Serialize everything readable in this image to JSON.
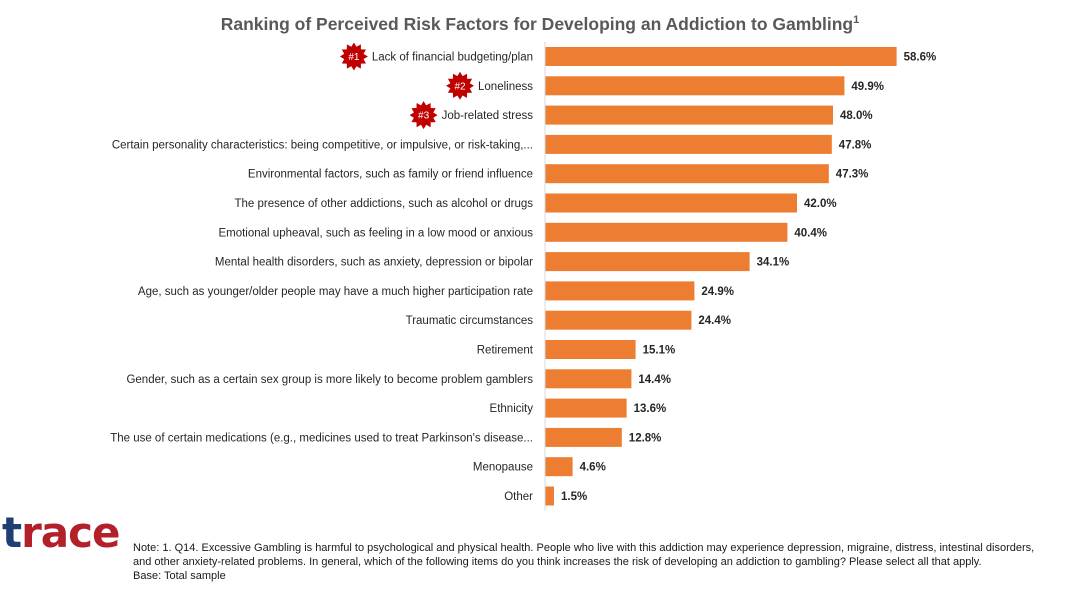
{
  "chart_data": {
    "type": "bar",
    "orientation": "horizontal",
    "title": "Ranking of Perceived Risk Factors for Developing an Addiction to Gambling",
    "title_superscript": "1",
    "categories": [
      "Lack of financial budgeting/plan",
      "Loneliness",
      "Job-related stress",
      "Certain personality characteristics: being competitive, or impulsive, or risk-taking,...",
      "Environmental factors, such as family or friend influence",
      "The presence of other addictions, such as alcohol or drugs",
      "Emotional upheaval, such as feeling in a low mood or anxious",
      "Mental health disorders, such as anxiety, depression or bipolar",
      "Age, such as younger/older people may have a much higher participation rate",
      "Traumatic circumstances",
      "Retirement",
      "Gender, such as a certain sex group is more likely to become problem gamblers",
      "Ethnicity",
      "The use of certain medications (e.g., medicines used to treat Parkinson's disease...",
      "Menopause",
      "Other"
    ],
    "values": [
      58.6,
      49.9,
      48.0,
      47.8,
      47.3,
      42.0,
      40.4,
      34.1,
      24.9,
      24.4,
      15.1,
      14.4,
      13.6,
      12.8,
      4.6,
      1.5
    ],
    "value_labels": [
      "58.6%",
      "49.9%",
      "48.0%",
      "47.8%",
      "47.3%",
      "42.0%",
      "40.4%",
      "34.1%",
      "24.9%",
      "24.4%",
      "15.1%",
      "14.4%",
      "13.6%",
      "12.8%",
      "4.6%",
      "1.5%"
    ],
    "rank_badges": [
      "#1",
      "#2",
      "#3"
    ],
    "bar_color": "#ed7d31",
    "badge_color": "#c00000",
    "xlim": [
      0,
      60
    ],
    "grid": false,
    "legend": "none"
  },
  "logo": {
    "text": "trace"
  },
  "note": {
    "line1": "Note: 1. Q14. Excessive Gambling is harmful to psychological and physical health. People who live with this addiction may experience depression, migraine, distress, intestinal disorders,",
    "line2": "and other anxiety-related problems. In general, which of the following items do you think increases the risk of developing an addiction to gambling? Please select all that apply.",
    "line3": "Base: Total sample"
  }
}
